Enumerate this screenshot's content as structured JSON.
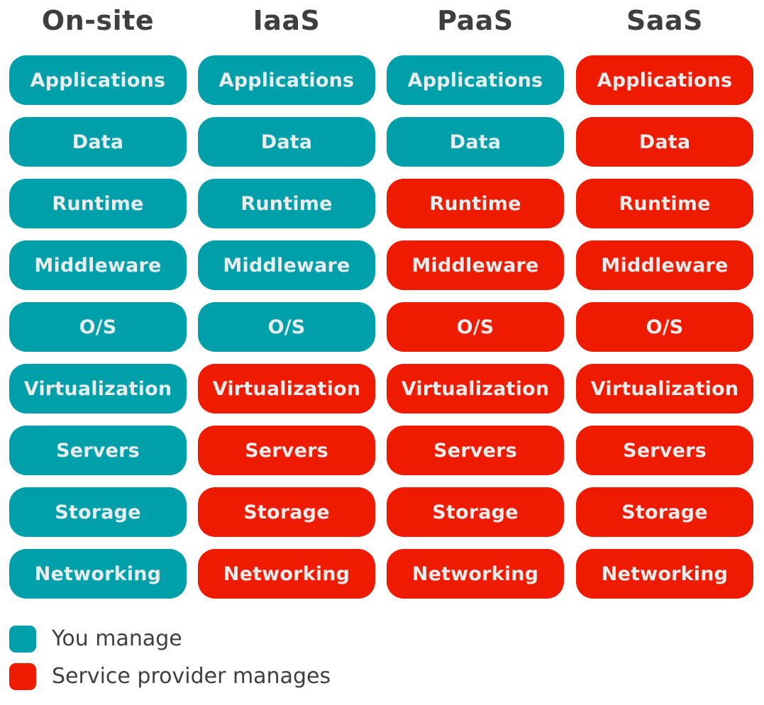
{
  "colors": {
    "you": "#00a0aa",
    "provider": "#ee1b00"
  },
  "columns": [
    {
      "title": "On-site",
      "cells": [
        {
          "label": "Applications",
          "owner": "you"
        },
        {
          "label": "Data",
          "owner": "you"
        },
        {
          "label": "Runtime",
          "owner": "you"
        },
        {
          "label": "Middleware",
          "owner": "you"
        },
        {
          "label": "O/S",
          "owner": "you"
        },
        {
          "label": "Virtualization",
          "owner": "you"
        },
        {
          "label": "Servers",
          "owner": "you"
        },
        {
          "label": "Storage",
          "owner": "you"
        },
        {
          "label": "Networking",
          "owner": "you"
        }
      ]
    },
    {
      "title": "IaaS",
      "cells": [
        {
          "label": "Applications",
          "owner": "you"
        },
        {
          "label": "Data",
          "owner": "you"
        },
        {
          "label": "Runtime",
          "owner": "you"
        },
        {
          "label": "Middleware",
          "owner": "you"
        },
        {
          "label": "O/S",
          "owner": "you"
        },
        {
          "label": "Virtualization",
          "owner": "provider"
        },
        {
          "label": "Servers",
          "owner": "provider"
        },
        {
          "label": "Storage",
          "owner": "provider"
        },
        {
          "label": "Networking",
          "owner": "provider"
        }
      ]
    },
    {
      "title": "PaaS",
      "cells": [
        {
          "label": "Applications",
          "owner": "you"
        },
        {
          "label": "Data",
          "owner": "you"
        },
        {
          "label": "Runtime",
          "owner": "provider"
        },
        {
          "label": "Middleware",
          "owner": "provider"
        },
        {
          "label": "O/S",
          "owner": "provider"
        },
        {
          "label": "Virtualization",
          "owner": "provider"
        },
        {
          "label": "Servers",
          "owner": "provider"
        },
        {
          "label": "Storage",
          "owner": "provider"
        },
        {
          "label": "Networking",
          "owner": "provider"
        }
      ]
    },
    {
      "title": "SaaS",
      "cells": [
        {
          "label": "Applications",
          "owner": "provider"
        },
        {
          "label": "Data",
          "owner": "provider"
        },
        {
          "label": "Runtime",
          "owner": "provider"
        },
        {
          "label": "Middleware",
          "owner": "provider"
        },
        {
          "label": "O/S",
          "owner": "provider"
        },
        {
          "label": "Virtualization",
          "owner": "provider"
        },
        {
          "label": "Servers",
          "owner": "provider"
        },
        {
          "label": "Storage",
          "owner": "provider"
        },
        {
          "label": "Networking",
          "owner": "provider"
        }
      ]
    }
  ],
  "legend": [
    {
      "label": "You manage",
      "owner": "you"
    },
    {
      "label": "Service provider manages",
      "owner": "provider"
    }
  ]
}
